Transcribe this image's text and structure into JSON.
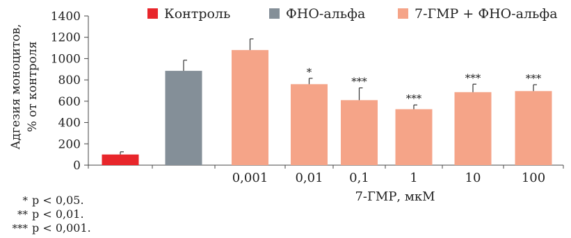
{
  "chart_data": {
    "type": "bar",
    "ylabel": "Адгезия моноцитов, % от контроля",
    "xlabel": "7-ГМР, мкМ",
    "ylim": [
      0,
      1400
    ],
    "yticks": [
      "0",
      "200",
      "400",
      "600",
      "800",
      "1000",
      "1200",
      "1400"
    ],
    "grid": false,
    "legend_position": "top",
    "series": [
      {
        "name": "Контроль",
        "color": "#e8262b"
      },
      {
        "name": "ФНО-альфа",
        "color": "#848f98"
      },
      {
        "name": "7-ГМР + ФНО-альфа",
        "color": "#f5a488"
      }
    ],
    "bars": [
      {
        "category": "",
        "series": "Контроль",
        "value": 100,
        "error": 25,
        "sig": ""
      },
      {
        "category": "",
        "series": "ФНО-альфа",
        "value": 885,
        "error": 100,
        "sig": ""
      },
      {
        "category": "0,001",
        "series": "7-ГМР + ФНО-альфа",
        "value": 1080,
        "error": 105,
        "sig": ""
      },
      {
        "category": "0,01",
        "series": "7-ГМР + ФНО-альфа",
        "value": 760,
        "error": 55,
        "sig": "*"
      },
      {
        "category": "0,1",
        "series": "7-ГМР + ФНО-альфа",
        "value": 610,
        "error": 115,
        "sig": "***"
      },
      {
        "category": "1",
        "series": "7-ГМР + ФНО-альфа",
        "value": 525,
        "error": 40,
        "sig": "***"
      },
      {
        "category": "10",
        "series": "7-ГМР + ФНО-альфа",
        "value": 685,
        "error": 75,
        "sig": "***"
      },
      {
        "category": "100",
        "series": "7-ГМР + ФНО-альфа",
        "value": 695,
        "error": 60,
        "sig": "***"
      }
    ]
  },
  "footnotes": [
    {
      "stars": "*",
      "text": "p < 0,05."
    },
    {
      "stars": "**",
      "text": "p < 0,01."
    },
    {
      "stars": "***",
      "text": "p < 0,001."
    }
  ]
}
